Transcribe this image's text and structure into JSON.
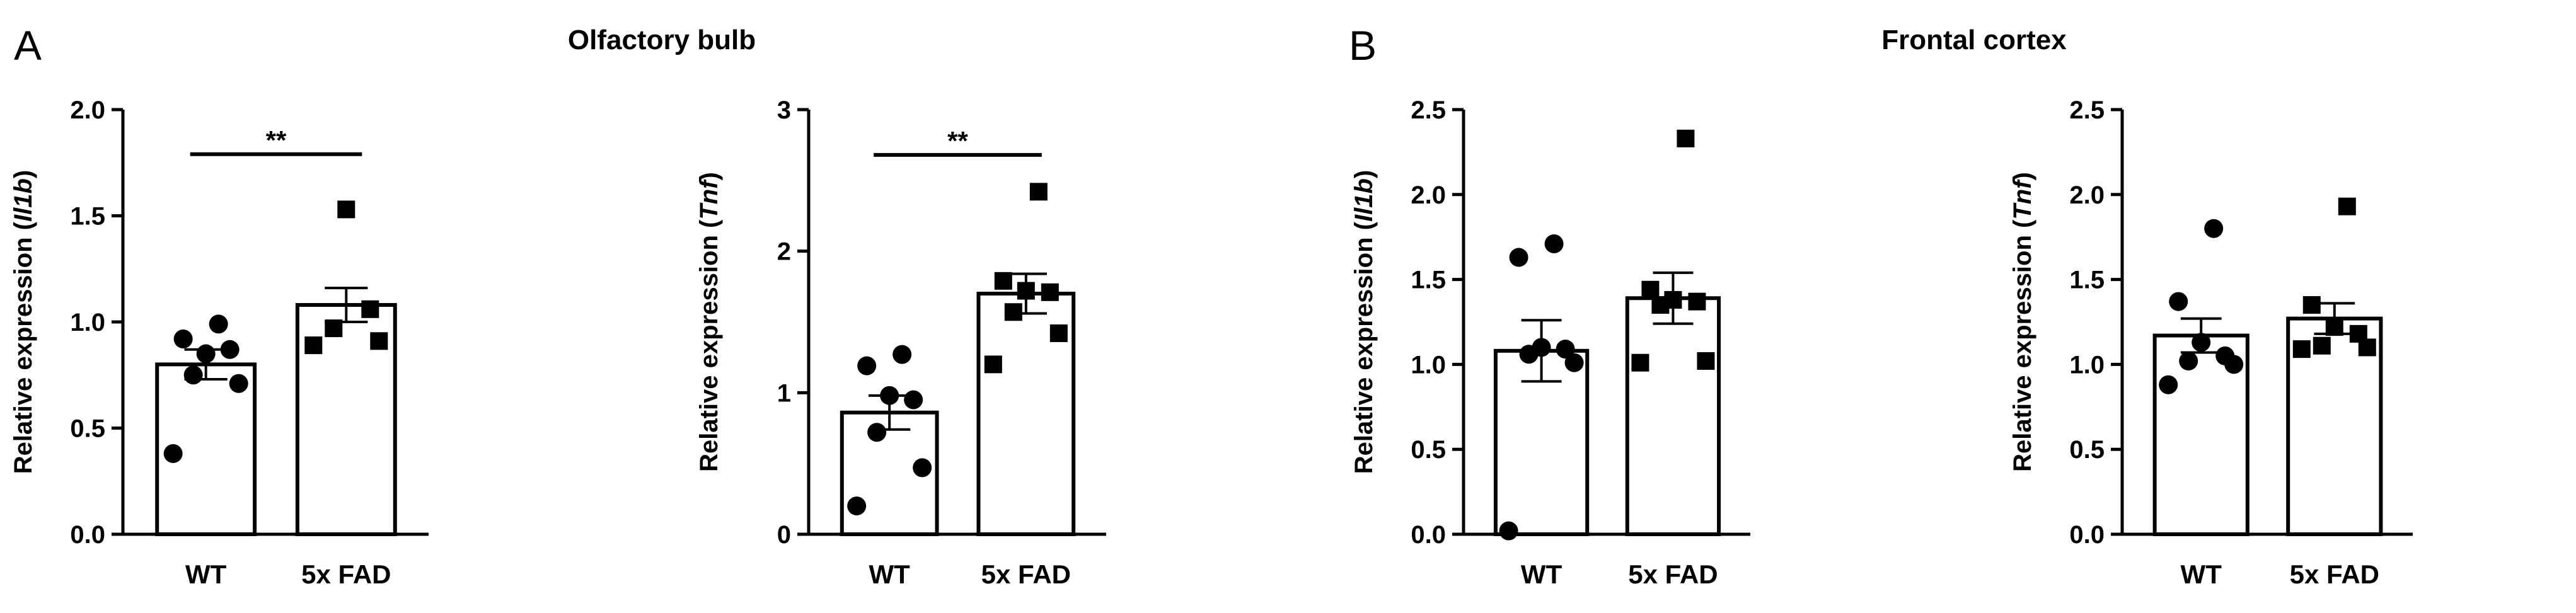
{
  "panels": [
    {
      "letter": "A",
      "title": "Olfactory bulb"
    },
    {
      "letter": "B",
      "title": "Frontal cortex"
    }
  ],
  "chart_data": [
    {
      "type": "bar",
      "panel": "A",
      "ylabel_prefix": "Relative expression (",
      "ylabel_gene": "Il1b",
      "ylabel_suffix": ")",
      "ylim": [
        0,
        2.0
      ],
      "ticks": [
        "0.0",
        "0.5",
        "1.0",
        "1.5",
        "2.0"
      ],
      "categories": [
        "WT",
        "5x FAD"
      ],
      "values": [
        0.8,
        1.08
      ],
      "sem": [
        0.07,
        0.08
      ],
      "points": [
        [
          0.38,
          0.71,
          0.75,
          0.87,
          0.85,
          0.92,
          0.99
        ],
        [
          0.89,
          0.91,
          0.97,
          1.06,
          1.53
        ]
      ],
      "markers": [
        "circle",
        "square"
      ],
      "significance": {
        "label": "**",
        "y": 1.79
      }
    },
    {
      "type": "bar",
      "panel": "A",
      "ylabel_prefix": "Relative expression (",
      "ylabel_gene": "Tnf",
      "ylabel_suffix": ")",
      "ylim": [
        0,
        3
      ],
      "ticks": [
        "0",
        "1",
        "2",
        "3"
      ],
      "categories": [
        "WT",
        "5x FAD"
      ],
      "values": [
        0.86,
        1.7
      ],
      "sem": [
        0.12,
        0.14
      ],
      "points": [
        [
          0.2,
          0.47,
          0.72,
          0.95,
          0.98,
          1.19,
          1.27
        ],
        [
          1.2,
          1.42,
          1.57,
          1.71,
          1.72,
          1.79,
          2.42
        ]
      ],
      "markers": [
        "circle",
        "square"
      ],
      "significance": {
        "label": "**",
        "y": 2.68
      }
    },
    {
      "type": "bar",
      "panel": "B",
      "ylabel_prefix": "Relative expression (",
      "ylabel_gene": "Il1b",
      "ylabel_suffix": ")",
      "ylim": [
        0,
        2.5
      ],
      "ticks": [
        "0.0",
        "0.5",
        "1.0",
        "1.5",
        "2.0",
        "2.5"
      ],
      "categories": [
        "WT",
        "5x FAD"
      ],
      "values": [
        1.08,
        1.39
      ],
      "sem": [
        0.18,
        0.15
      ],
      "points": [
        [
          0.02,
          1.01,
          1.06,
          1.09,
          1.1,
          1.63,
          1.71
        ],
        [
          1.01,
          1.02,
          1.35,
          1.37,
          1.38,
          1.44,
          2.33
        ]
      ],
      "markers": [
        "circle",
        "square"
      ],
      "significance": null
    },
    {
      "type": "bar",
      "panel": "B",
      "ylabel_prefix": "Relative expression (",
      "ylabel_gene": "Tnf",
      "ylabel_suffix": ")",
      "ylim": [
        0,
        2.5
      ],
      "ticks": [
        "0.0",
        "0.5",
        "1.0",
        "1.5",
        "2.0",
        "2.5"
      ],
      "categories": [
        "WT",
        "5x FAD"
      ],
      "values": [
        1.17,
        1.27
      ],
      "sem": [
        0.1,
        0.09
      ],
      "points": [
        [
          0.88,
          1.0,
          1.02,
          1.05,
          1.13,
          1.37,
          1.8
        ],
        [
          1.09,
          1.1,
          1.11,
          1.18,
          1.22,
          1.35,
          1.93
        ]
      ],
      "markers": [
        "circle",
        "square"
      ],
      "significance": null
    }
  ]
}
